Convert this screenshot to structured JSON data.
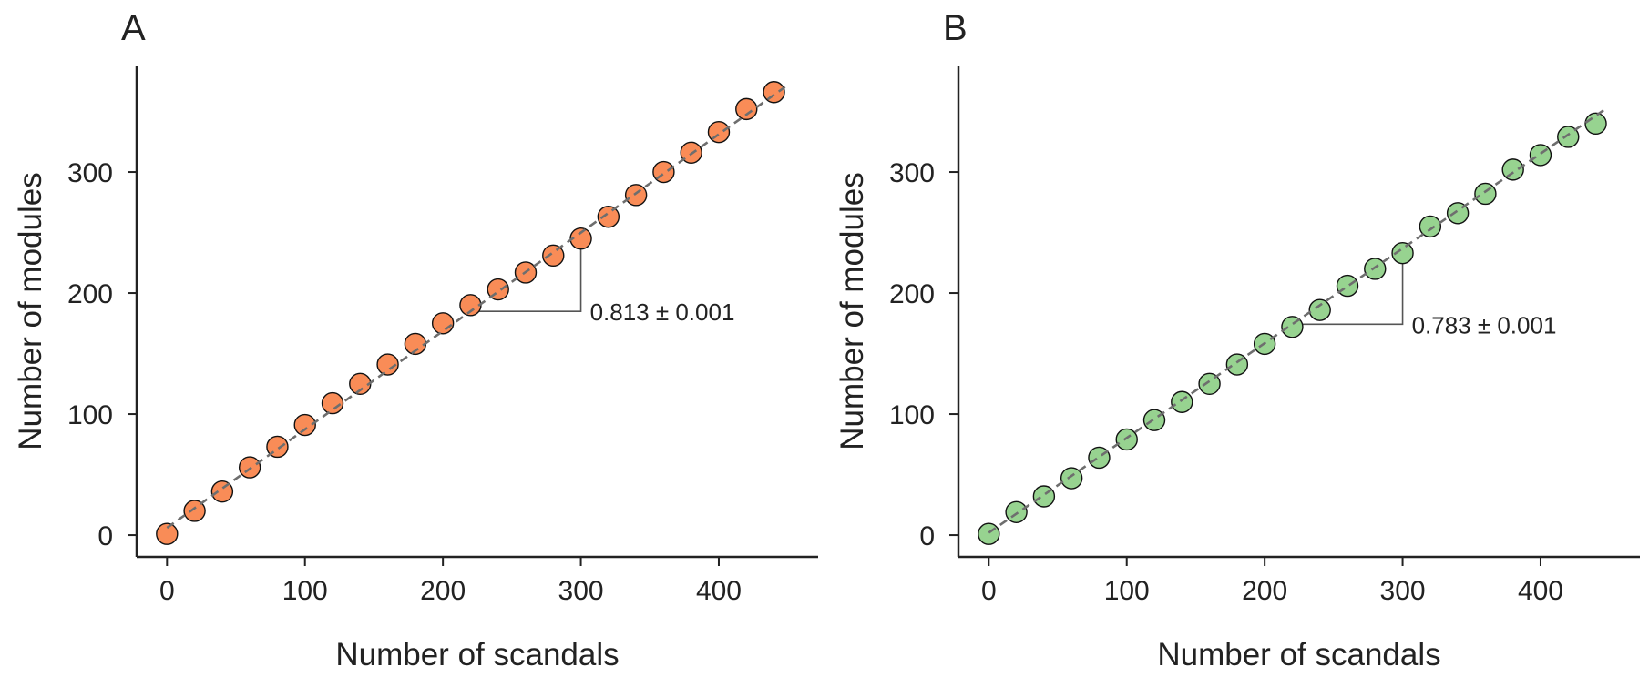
{
  "figure": {
    "panel_color_a": "#F98C57",
    "panel_color_b": "#97D390",
    "marker_edge_color": "#111111",
    "fit_line_color": "#6e6e6e",
    "axis_color": "#222222"
  },
  "chart_data": [
    {
      "type": "scatter",
      "panel_label": "A",
      "title": "",
      "xlabel": "Number of scandals",
      "ylabel": "Number of modules",
      "xlim": [
        -22,
        472
      ],
      "ylim": [
        -18,
        388
      ],
      "x_ticks": [
        0,
        100,
        200,
        300,
        400
      ],
      "y_ticks": [
        0,
        100,
        200,
        300
      ],
      "grid": false,
      "legend": "none",
      "series": [
        {
          "color": "#F98C57",
          "x": [
            0,
            20,
            40,
            60,
            80,
            100,
            120,
            140,
            160,
            180,
            200,
            220,
            240,
            260,
            280,
            300,
            320,
            340,
            360,
            380,
            400,
            420,
            440
          ],
          "y": [
            1,
            20,
            36,
            56,
            73,
            91,
            109,
            125,
            141,
            158,
            175,
            190,
            203,
            217,
            231,
            245,
            263,
            281,
            300,
            316,
            333,
            352,
            366
          ]
        }
      ],
      "fit_line": {
        "slope": 0.813,
        "intercept": 6,
        "x_range": [
          0,
          448
        ]
      },
      "slope_annotation": {
        "text": "0.813 ± 0.001",
        "x_start": 220,
        "x_end": 300
      }
    },
    {
      "type": "scatter",
      "panel_label": "B",
      "title": "",
      "xlabel": "Number of scandals",
      "ylabel": "Number of modules",
      "xlim": [
        -22,
        472
      ],
      "ylim": [
        -18,
        388
      ],
      "x_ticks": [
        0,
        100,
        200,
        300,
        400
      ],
      "y_ticks": [
        0,
        100,
        200,
        300
      ],
      "grid": false,
      "legend": "none",
      "series": [
        {
          "color": "#97D390",
          "x": [
            0,
            20,
            40,
            60,
            80,
            100,
            120,
            140,
            160,
            180,
            200,
            220,
            240,
            260,
            280,
            300,
            320,
            340,
            360,
            380,
            400,
            420,
            440
          ],
          "y": [
            1,
            19,
            32,
            47,
            64,
            79,
            95,
            110,
            125,
            141,
            158,
            172,
            186,
            206,
            220,
            233,
            255,
            266,
            282,
            302,
            314,
            329,
            340
          ]
        }
      ],
      "fit_line": {
        "slope": 0.783,
        "intercept": 2,
        "x_range": [
          0,
          448
        ]
      },
      "slope_annotation": {
        "text": "0.783 ± 0.001",
        "x_start": 220,
        "x_end": 300
      }
    }
  ]
}
